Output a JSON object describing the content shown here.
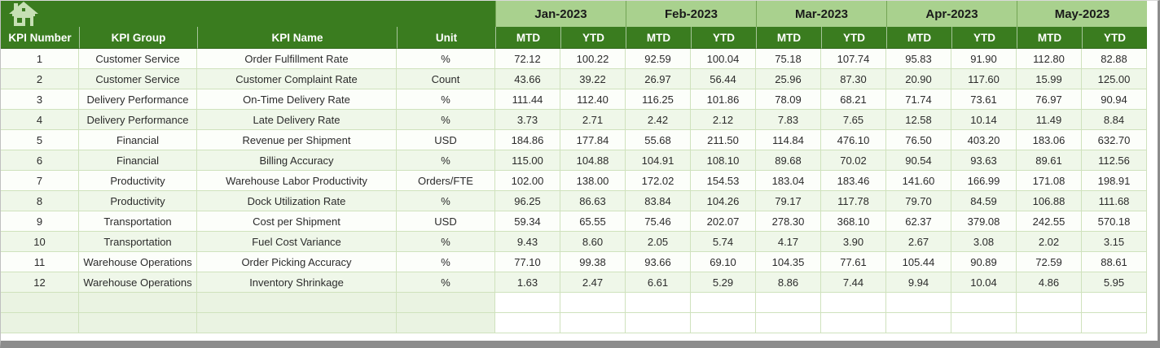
{
  "header": {
    "left_columns": [
      "KPI Number",
      "KPI Group",
      "KPI Name",
      "Unit"
    ],
    "months": [
      "Jan-2023",
      "Feb-2023",
      "Mar-2023",
      "Apr-2023",
      "May-2023"
    ],
    "sub_columns": [
      "MTD",
      "YTD"
    ],
    "home_icon": "home-icon"
  },
  "rows": [
    {
      "number": "1",
      "group": "Customer Service",
      "name": "Order Fulfillment Rate",
      "unit": "%",
      "values": [
        "72.12",
        "100.22",
        "92.59",
        "100.04",
        "75.18",
        "107.74",
        "95.83",
        "91.90",
        "112.80",
        "82.88"
      ]
    },
    {
      "number": "2",
      "group": "Customer Service",
      "name": "Customer Complaint Rate",
      "unit": "Count",
      "values": [
        "43.66",
        "39.22",
        "26.97",
        "56.44",
        "25.96",
        "87.30",
        "20.90",
        "117.60",
        "15.99",
        "125.00"
      ]
    },
    {
      "number": "3",
      "group": "Delivery Performance",
      "name": "On-Time Delivery Rate",
      "unit": "%",
      "values": [
        "111.44",
        "112.40",
        "116.25",
        "101.86",
        "78.09",
        "68.21",
        "71.74",
        "73.61",
        "76.97",
        "90.94"
      ]
    },
    {
      "number": "4",
      "group": "Delivery Performance",
      "name": "Late Delivery Rate",
      "unit": "%",
      "values": [
        "3.73",
        "2.71",
        "2.42",
        "2.12",
        "7.83",
        "7.65",
        "12.58",
        "10.14",
        "11.49",
        "8.84"
      ]
    },
    {
      "number": "5",
      "group": "Financial",
      "name": "Revenue per Shipment",
      "unit": "USD",
      "values": [
        "184.86",
        "177.84",
        "55.68",
        "211.50",
        "114.84",
        "476.10",
        "76.50",
        "403.20",
        "183.06",
        "632.70"
      ]
    },
    {
      "number": "6",
      "group": "Financial",
      "name": "Billing Accuracy",
      "unit": "%",
      "values": [
        "115.00",
        "104.88",
        "104.91",
        "108.10",
        "89.68",
        "70.02",
        "90.54",
        "93.63",
        "89.61",
        "112.56"
      ]
    },
    {
      "number": "7",
      "group": "Productivity",
      "name": "Warehouse Labor Productivity",
      "unit": "Orders/FTE",
      "values": [
        "102.00",
        "138.00",
        "172.02",
        "154.53",
        "183.04",
        "183.46",
        "141.60",
        "166.99",
        "171.08",
        "198.91"
      ]
    },
    {
      "number": "8",
      "group": "Productivity",
      "name": "Dock Utilization Rate",
      "unit": "%",
      "values": [
        "96.25",
        "86.63",
        "83.84",
        "104.26",
        "79.17",
        "117.78",
        "79.70",
        "84.59",
        "106.88",
        "111.68"
      ]
    },
    {
      "number": "9",
      "group": "Transportation",
      "name": "Cost per Shipment",
      "unit": "USD",
      "values": [
        "59.34",
        "65.55",
        "75.46",
        "202.07",
        "278.30",
        "368.10",
        "62.37",
        "379.08",
        "242.55",
        "570.18"
      ]
    },
    {
      "number": "10",
      "group": "Transportation",
      "name": "Fuel Cost Variance",
      "unit": "%",
      "values": [
        "9.43",
        "8.60",
        "2.05",
        "5.74",
        "4.17",
        "3.90",
        "2.67",
        "3.08",
        "2.02",
        "3.15"
      ]
    },
    {
      "number": "11",
      "group": "Warehouse Operations",
      "name": "Order Picking Accuracy",
      "unit": "%",
      "values": [
        "77.10",
        "99.38",
        "93.66",
        "69.10",
        "104.35",
        "77.61",
        "105.44",
        "90.89",
        "72.59",
        "88.61"
      ]
    },
    {
      "number": "12",
      "group": "Warehouse Operations",
      "name": "Inventory Shrinkage",
      "unit": "%",
      "values": [
        "1.63",
        "2.47",
        "6.61",
        "5.29",
        "8.86",
        "7.44",
        "9.94",
        "10.04",
        "4.86",
        "5.95"
      ]
    }
  ],
  "empty_row_count": 2,
  "colors": {
    "header_dark_green": "#3a7c1f",
    "month_band_green": "#a9d18e",
    "row_odd": "#fcfefa",
    "row_even": "#eff7e9",
    "grid_line": "#cfe2bd",
    "empty_left_cell": "#eaf3e2",
    "home_icon_fill": "#c6e0b4",
    "window_frame_gray": "#8c8c8c"
  }
}
